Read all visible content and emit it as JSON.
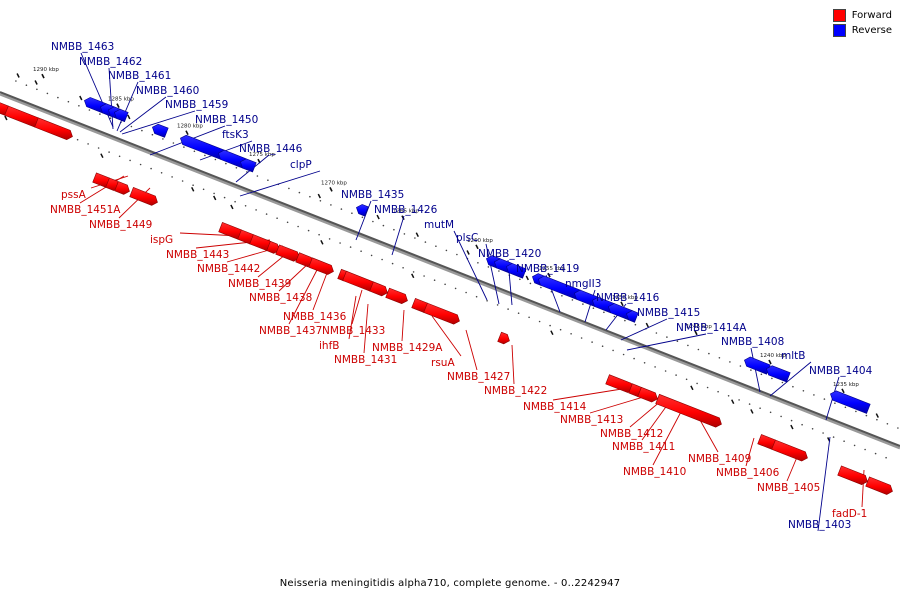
{
  "legend": {
    "forward_label": "Forward",
    "reverse_label": "Reverse",
    "forward_color": "#ff0000",
    "reverse_color": "#0000ff"
  },
  "caption": "Neisseria meningitidis alpha710, complete genome. - 0..2242947",
  "ticks": [
    "1290 kbp",
    "1285 kbp",
    "1280 kbp",
    "1275 kbp",
    "1270 kbp",
    "1265 kbp",
    "1260 kbp",
    "1255 kbp",
    "1250 kbp",
    "1245 kbp",
    "1240 kbp",
    "1235 kbp"
  ],
  "label_color_forward": "#cc0000",
  "label_color_reverse": "#00008b",
  "reverse_labels": [
    "NMBB_1463",
    "NMBB_1462",
    "NMBB_1461",
    "NMBB_1460",
    "NMBB_1459",
    "NMBB_1450",
    "ftsK3",
    "NMBB_1446",
    "clpP",
    "NMBB_1435",
    "NMBB_1426",
    "mutM",
    "plsC",
    "NMBB_1420",
    "NMBB_1419",
    "nmgII3",
    "NMBB_1416",
    "NMBB_1415",
    "NMBB_1414A",
    "NMBB_1408",
    "mltB",
    "NMBB_1404",
    "NMBB_1403"
  ],
  "forward_labels": [
    "pssA",
    "NMBB_1451A",
    "NMBB_1449",
    "ispG",
    "NMBB_1443",
    "NMBB_1442",
    "NMBB_1439",
    "NMBB_1438",
    "NMBB_1436",
    "NMBB_1437",
    "NMBB_1433",
    "ihfB",
    "NMBB_1429A",
    "NMBB_1431",
    "rsuA",
    "NMBB_1427",
    "NMBB_1422",
    "NMBB_1414",
    "NMBB_1413",
    "NMBB_1412",
    "NMBB_1411",
    "NMBB_1410",
    "NMBB_1409",
    "NMBB_1406",
    "NMBB_1405",
    "fadD-1"
  ]
}
